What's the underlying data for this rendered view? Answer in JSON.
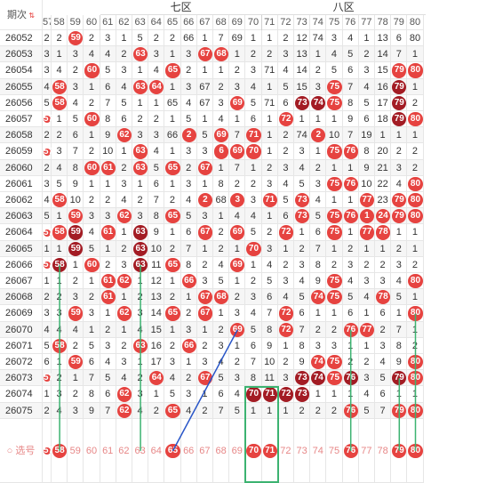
{
  "header": {
    "period_label": "期次",
    "zone_seven": "七区",
    "zone_eight": "八区",
    "columns": [
      "57",
      "58",
      "59",
      "60",
      "61",
      "62",
      "63",
      "64",
      "65",
      "66",
      "67",
      "68",
      "69",
      "70",
      "71",
      "72",
      "73",
      "74",
      "75",
      "76",
      "77",
      "78",
      "79",
      "80"
    ]
  },
  "rows": [
    {
      "period": "26052",
      "cells": [
        "2",
        "2",
        "59",
        "2",
        "3",
        "1",
        "5",
        "2",
        "2",
        "66",
        "1",
        "7",
        "69",
        "1",
        "1",
        "2",
        "12",
        "74",
        "3",
        "4",
        "1",
        "13",
        "6",
        "80"
      ]
    },
    {
      "period": "26053",
      "cells": [
        "3",
        "1",
        "3",
        "4",
        "4",
        "2",
        "63",
        "3",
        "1",
        "3",
        "67",
        "68",
        "1",
        "2",
        "2",
        "3",
        "13",
        "1",
        "4",
        "5",
        "2",
        "14",
        "7",
        "1"
      ]
    },
    {
      "period": "26054",
      "cells": [
        "3",
        "4",
        "2",
        "60",
        "5",
        "3",
        "1",
        "4",
        "65",
        "2",
        "1",
        "1",
        "2",
        "3",
        "71",
        "4",
        "14",
        "2",
        "5",
        "6",
        "3",
        "15",
        "79",
        "80"
      ]
    },
    {
      "period": "26055",
      "cells": [
        "4",
        "58",
        "3",
        "1",
        "6",
        "4",
        "63",
        "64",
        "1",
        "3",
        "67",
        "2",
        "3",
        "4",
        "1",
        "5",
        "15",
        "3",
        "75",
        "7",
        "4",
        "16",
        "79",
        "1"
      ]
    },
    {
      "period": "26056",
      "cells": [
        "5",
        "58",
        "4",
        "2",
        "7",
        "5",
        "1",
        "1",
        "65",
        "4",
        "67",
        "3",
        "69",
        "5",
        "71",
        "6",
        "73",
        "74",
        "75",
        "8",
        "5",
        "17",
        "79",
        "2"
      ]
    },
    {
      "period": "26057",
      "cells": [
        "57",
        "1",
        "5",
        "60",
        "8",
        "6",
        "2",
        "2",
        "1",
        "5",
        "1",
        "4",
        "1",
        "6",
        "1",
        "72",
        "1",
        "1",
        "1",
        "9",
        "6",
        "18",
        "79",
        "80"
      ]
    },
    {
      "period": "26058",
      "cells": [
        "2",
        "2",
        "6",
        "1",
        "9",
        "62",
        "3",
        "3",
        "66",
        "2",
        "5",
        "69",
        "7",
        "71",
        "1",
        "2",
        "74",
        "2",
        "10",
        "7",
        "19",
        "1",
        "1",
        "1"
      ]
    },
    {
      "period": "26059",
      "cells": [
        "57",
        "3",
        "7",
        "2",
        "10",
        "1",
        "63",
        "4",
        "1",
        "3",
        "3",
        "6",
        "69",
        "70",
        "1",
        "2",
        "3",
        "1",
        "75",
        "76",
        "8",
        "20",
        "2",
        "2"
      ]
    },
    {
      "period": "26060",
      "cells": [
        "2",
        "4",
        "8",
        "60",
        "61",
        "2",
        "63",
        "5",
        "65",
        "2",
        "67",
        "1",
        "7",
        "1",
        "2",
        "3",
        "4",
        "2",
        "1",
        "1",
        "9",
        "21",
        "3",
        "2"
      ]
    },
    {
      "period": "26061",
      "cells": [
        "3",
        "5",
        "9",
        "1",
        "1",
        "3",
        "1",
        "6",
        "1",
        "3",
        "1",
        "8",
        "2",
        "2",
        "3",
        "4",
        "5",
        "3",
        "75",
        "76",
        "10",
        "22",
        "4",
        "80"
      ]
    },
    {
      "period": "26062",
      "cells": [
        "4",
        "58",
        "10",
        "2",
        "2",
        "4",
        "2",
        "7",
        "2",
        "4",
        "2",
        "68",
        "3",
        "3",
        "71",
        "5",
        "73",
        "4",
        "1",
        "1",
        "77",
        "23",
        "79",
        "80"
      ]
    },
    {
      "period": "26063",
      "cells": [
        "5",
        "1",
        "59",
        "3",
        "3",
        "62",
        "3",
        "8",
        "65",
        "5",
        "3",
        "1",
        "4",
        "4",
        "1",
        "6",
        "73",
        "5",
        "75",
        "76",
        "1",
        "24",
        "79",
        "80"
      ]
    },
    {
      "period": "26064",
      "cells": [
        "57",
        "58",
        "59",
        "4",
        "61",
        "1",
        "63",
        "9",
        "1",
        "6",
        "67",
        "2",
        "69",
        "5",
        "2",
        "72",
        "1",
        "6",
        "75",
        "1",
        "77",
        "78",
        "1",
        "1"
      ]
    },
    {
      "period": "26065",
      "cells": [
        "1",
        "1",
        "59",
        "5",
        "1",
        "2",
        "63",
        "10",
        "2",
        "7",
        "1",
        "2",
        "1",
        "70",
        "3",
        "1",
        "2",
        "7",
        "1",
        "2",
        "1",
        "1",
        "2",
        "1"
      ]
    },
    {
      "period": "26066",
      "cells": [
        "57",
        "58",
        "1",
        "60",
        "2",
        "3",
        "63",
        "11",
        "65",
        "8",
        "2",
        "4",
        "69",
        "1",
        "4",
        "2",
        "3",
        "8",
        "2",
        "3",
        "2",
        "2",
        "3",
        "2"
      ]
    },
    {
      "period": "26067",
      "cells": [
        "1",
        "1",
        "2",
        "1",
        "61",
        "62",
        "1",
        "12",
        "1",
        "66",
        "3",
        "5",
        "1",
        "2",
        "5",
        "3",
        "4",
        "9",
        "75",
        "4",
        "3",
        "3",
        "4",
        "80"
      ]
    },
    {
      "period": "26068",
      "cells": [
        "2",
        "2",
        "3",
        "2",
        "61",
        "1",
        "2",
        "13",
        "2",
        "1",
        "67",
        "68",
        "2",
        "3",
        "6",
        "4",
        "5",
        "74",
        "75",
        "5",
        "4",
        "78",
        "5",
        "1"
      ]
    },
    {
      "period": "26069",
      "cells": [
        "3",
        "3",
        "59",
        "3",
        "1",
        "62",
        "3",
        "14",
        "65",
        "2",
        "67",
        "1",
        "3",
        "4",
        "7",
        "72",
        "6",
        "1",
        "1",
        "6",
        "1",
        "6",
        "1",
        "80"
      ]
    },
    {
      "period": "26070",
      "cells": [
        "4",
        "4",
        "4",
        "1",
        "2",
        "1",
        "4",
        "15",
        "1",
        "3",
        "1",
        "2",
        "69",
        "5",
        "8",
        "72",
        "7",
        "2",
        "2",
        "76",
        "77",
        "2",
        "7",
        "1"
      ]
    },
    {
      "period": "26071",
      "cells": [
        "5",
        "58",
        "2",
        "5",
        "3",
        "2",
        "63",
        "16",
        "2",
        "66",
        "2",
        "3",
        "1",
        "6",
        "9",
        "1",
        "8",
        "3",
        "3",
        "1",
        "1",
        "3",
        "8",
        "2"
      ]
    },
    {
      "period": "26072",
      "cells": [
        "6",
        "1",
        "59",
        "6",
        "4",
        "3",
        "1",
        "17",
        "3",
        "1",
        "3",
        "4",
        "2",
        "7",
        "10",
        "2",
        "9",
        "74",
        "75",
        "2",
        "2",
        "4",
        "9",
        "80"
      ]
    },
    {
      "period": "26073",
      "cells": [
        "57",
        "2",
        "1",
        "7",
        "5",
        "4",
        "2",
        "64",
        "4",
        "2",
        "67",
        "5",
        "3",
        "8",
        "11",
        "3",
        "73",
        "74",
        "75",
        "76",
        "3",
        "5",
        "79",
        "80"
      ]
    },
    {
      "period": "26074",
      "cells": [
        "1",
        "3",
        "2",
        "8",
        "6",
        "62",
        "3",
        "1",
        "5",
        "3",
        "1",
        "6",
        "4",
        "70",
        "71",
        "72",
        "73",
        "1",
        "1",
        "1",
        "4",
        "6",
        "1",
        "1"
      ]
    },
    {
      "period": "26075",
      "cells": [
        "2",
        "4",
        "3",
        "9",
        "7",
        "62",
        "4",
        "2",
        "65",
        "4",
        "2",
        "7",
        "5",
        "1",
        "1",
        "1",
        "2",
        "2",
        "2",
        "76",
        "5",
        "7",
        "79",
        "80"
      ]
    }
  ],
  "balls_red": [
    [
      2
    ],
    [
      6,
      10,
      11
    ],
    [
      3,
      8,
      22,
      23
    ],
    [
      1,
      6,
      7,
      18,
      22
    ],
    [
      1,
      12,
      16,
      17,
      18,
      22
    ],
    [
      0,
      3,
      15,
      22,
      23
    ],
    [
      5,
      9,
      11,
      13,
      17
    ],
    [
      0,
      6,
      11,
      12,
      13,
      18,
      19
    ],
    [
      3,
      4,
      6,
      8,
      10
    ],
    [
      18,
      19,
      23
    ],
    [
      1,
      10,
      12,
      14,
      16,
      20,
      22,
      23
    ],
    [
      2,
      5,
      8,
      16,
      18,
      19,
      20,
      21,
      22,
      23
    ],
    [
      0,
      1,
      2,
      4,
      6,
      10,
      12,
      15,
      18,
      20,
      21
    ],
    [
      2,
      6,
      13
    ],
    [
      0,
      1,
      3,
      6,
      8,
      12
    ],
    [
      4,
      5,
      9,
      18,
      23
    ],
    [
      4,
      10,
      11,
      17,
      18,
      21
    ],
    [
      2,
      5,
      8,
      10,
      15,
      23
    ],
    [
      12,
      15,
      19,
      20
    ],
    [
      1,
      6,
      9
    ],
    [
      2,
      17,
      18,
      23
    ],
    [
      0,
      7,
      10,
      16,
      17,
      18,
      19,
      22,
      23
    ],
    [
      5,
      13,
      14,
      15,
      16
    ],
    [
      5,
      8,
      19,
      22,
      23
    ]
  ],
  "balls_dark": [
    [],
    [],
    [],
    [
      22
    ],
    [
      16,
      17,
      22
    ],
    [
      22
    ],
    [],
    [],
    [],
    [],
    [],
    [],
    [
      2,
      6
    ],
    [
      2,
      6
    ],
    [
      1,
      6
    ],
    [],
    [],
    [],
    [],
    [],
    [],
    [
      16,
      17,
      19,
      22
    ],
    [
      13,
      14,
      15,
      16
    ],
    []
  ],
  "select_row": {
    "label": "选号",
    "cells": [
      "57",
      "58",
      "59",
      "60",
      "61",
      "62",
      "63",
      "64",
      "65",
      "66",
      "67",
      "68",
      "69",
      "70",
      "71",
      "72",
      "73",
      "74",
      "75",
      "76",
      "77",
      "78",
      "79",
      "80"
    ],
    "selected": [
      0,
      1,
      8,
      13,
      14,
      19,
      22,
      23
    ]
  },
  "colors": {
    "red": "#e64340",
    "dark": "#a31c24",
    "green": "#3cb371",
    "blue": "#2855c8"
  }
}
